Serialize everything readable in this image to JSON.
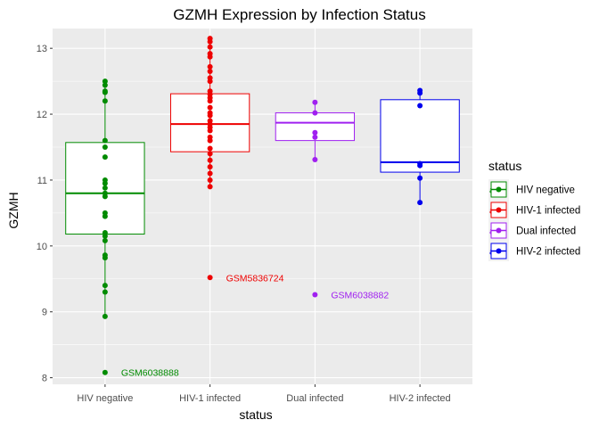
{
  "chart_data": {
    "type": "box",
    "title": "GZMH Expression by Infection Status",
    "xlabel": "status",
    "ylabel": "GZMH",
    "ylim": [
      7.9,
      13.3
    ],
    "yticks": [
      8,
      9,
      10,
      11,
      12,
      13
    ],
    "categories": [
      "HIV negative",
      "HIV-1 infected",
      "Dual infected",
      "HIV-2 infected"
    ],
    "grid": true,
    "legend": {
      "title": "status",
      "position": "right",
      "items": [
        "HIV negative",
        "HIV-1 infected",
        "Dual infected",
        "HIV-2 infected"
      ]
    },
    "series": [
      {
        "name": "HIV negative",
        "color": "#008B00",
        "box": {
          "q1": 10.18,
          "median": 10.8,
          "q3": 11.57,
          "whisker_low": 8.93,
          "whisker_high": 12.5
        },
        "points": [
          12.5,
          12.44,
          12.35,
          12.33,
          12.2,
          11.6,
          11.5,
          11.35,
          11.0,
          10.95,
          10.88,
          10.8,
          10.75,
          10.5,
          10.45,
          10.2,
          10.15,
          10.08,
          9.86,
          9.82,
          9.4,
          9.3,
          8.93,
          8.08
        ]
      },
      {
        "name": "HIV-1 infected",
        "color": "#EE0000",
        "box": {
          "q1": 11.43,
          "median": 11.85,
          "q3": 12.31,
          "whisker_low": 10.9,
          "whisker_high": 13.15
        },
        "points": [
          13.15,
          13.1,
          13.02,
          12.92,
          12.87,
          12.72,
          12.65,
          12.55,
          12.5,
          12.35,
          12.3,
          12.25,
          12.2,
          12.1,
          12.02,
          11.98,
          11.9,
          11.85,
          11.8,
          11.75,
          11.65,
          11.6,
          11.48,
          11.4,
          11.3,
          11.2,
          11.1,
          11.0,
          10.9,
          9.52
        ]
      },
      {
        "name": "Dual infected",
        "color": "#A020F0",
        "box": {
          "q1": 11.6,
          "median": 11.87,
          "q3": 12.02,
          "whisker_low": 11.31,
          "whisker_high": 12.18
        },
        "points": [
          12.18,
          12.02,
          11.72,
          11.65,
          11.31,
          9.26
        ]
      },
      {
        "name": "HIV-2 infected",
        "color": "#0000EE",
        "box": {
          "q1": 11.12,
          "median": 11.27,
          "q3": 12.22,
          "whisker_low": 10.66,
          "whisker_high": 12.36
        },
        "points": [
          12.36,
          12.32,
          12.13,
          11.25,
          11.22,
          11.03,
          10.66
        ]
      }
    ],
    "annotations": [
      {
        "text": "GSM6038888",
        "category": "HIV negative",
        "y": 8.08,
        "color": "#008B00"
      },
      {
        "text": "GSM5836724",
        "category": "HIV-1 infected",
        "y": 9.52,
        "color": "#EE0000"
      },
      {
        "text": "GSM6038882",
        "category": "Dual infected",
        "y": 9.26,
        "color": "#A020F0"
      }
    ],
    "colors": {
      "panel_background": "#EBEBEB",
      "grid_major": "#FFFFFF"
    }
  }
}
